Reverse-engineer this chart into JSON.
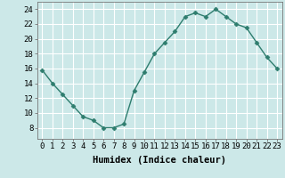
{
  "x": [
    0,
    1,
    2,
    3,
    4,
    5,
    6,
    7,
    8,
    9,
    10,
    11,
    12,
    13,
    14,
    15,
    16,
    17,
    18,
    19,
    20,
    21,
    22,
    23
  ],
  "y": [
    15.8,
    14.0,
    12.5,
    11.0,
    9.5,
    9.0,
    8.0,
    8.0,
    8.5,
    13.0,
    15.5,
    18.0,
    19.5,
    21.0,
    23.0,
    23.5,
    23.0,
    24.0,
    23.0,
    22.0,
    21.5,
    19.5,
    17.5,
    16.0
  ],
  "line_color": "#2e7d6e",
  "marker": "D",
  "marker_size": 2.5,
  "bg_color": "#cce8e8",
  "grid_color": "#ffffff",
  "xlabel": "Humidex (Indice chaleur)",
  "xlabel_fontsize": 7.5,
  "tick_fontsize": 6.5,
  "xlim": [
    -0.5,
    23.5
  ],
  "ylim": [
    6.5,
    25
  ],
  "yticks": [
    8,
    10,
    12,
    14,
    16,
    18,
    20,
    22,
    24
  ],
  "xtick_labels": [
    "0",
    "1",
    "2",
    "3",
    "4",
    "5",
    "6",
    "7",
    "8",
    "9",
    "10",
    "11",
    "12",
    "13",
    "14",
    "15",
    "16",
    "17",
    "18",
    "19",
    "20",
    "21",
    "22",
    "23"
  ]
}
